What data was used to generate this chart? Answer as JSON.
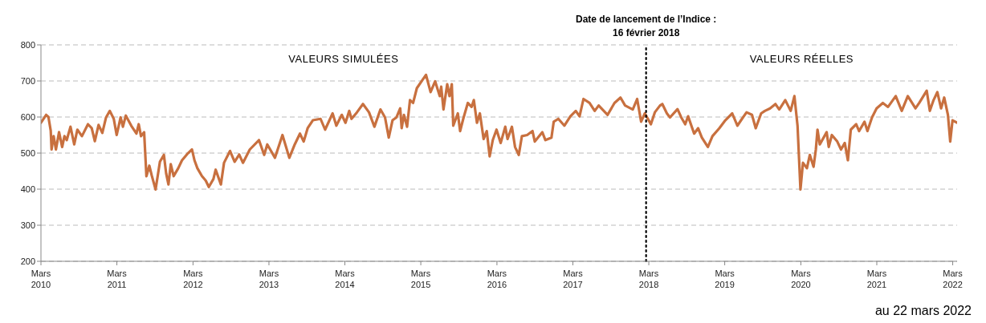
{
  "chart_data": {
    "type": "line",
    "x": [
      "2010-03-01",
      "2010-03-26",
      "2010-04-06",
      "2010-04-17",
      "2010-04-21",
      "2010-05-01",
      "2010-05-12",
      "2010-05-27",
      "2010-06-11",
      "2010-06-22",
      "2010-07-03",
      "2010-07-21",
      "2010-08-08",
      "2010-08-23",
      "2010-09-14",
      "2010-10-13",
      "2010-10-31",
      "2010-11-15",
      "2010-12-03",
      "2010-12-21",
      "2011-01-08",
      "2011-01-26",
      "2011-02-14",
      "2011-02-28",
      "2011-03-19",
      "2011-03-30",
      "2011-04-13",
      "2011-05-09",
      "2011-06-03",
      "2011-06-14",
      "2011-06-25",
      "2011-07-10",
      "2011-07-21",
      "2011-08-04",
      "2011-08-15",
      "2011-09-03",
      "2011-09-24",
      "2011-10-13",
      "2011-10-24",
      "2011-11-04",
      "2011-11-15",
      "2011-11-29",
      "2011-12-21",
      "2012-01-08",
      "2012-02-03",
      "2012-02-25",
      "2012-03-08",
      "2012-03-22",
      "2012-04-13",
      "2012-05-01",
      "2012-05-16",
      "2012-06-07",
      "2012-06-18",
      "2012-07-13",
      "2012-07-28",
      "2012-08-26",
      "2012-09-17",
      "2012-10-09",
      "2012-10-27",
      "2012-11-29",
      "2013-01-12",
      "2013-02-06",
      "2013-02-21",
      "2013-03-30",
      "2013-05-05",
      "2013-06-07",
      "2013-07-03",
      "2013-07-28",
      "2013-08-15",
      "2013-09-03",
      "2013-09-28",
      "2013-11-04",
      "2013-11-26",
      "2014-01-01",
      "2014-01-19",
      "2014-02-14",
      "2014-03-04",
      "2014-03-22",
      "2014-04-02",
      "2014-04-28",
      "2014-05-27",
      "2014-06-25",
      "2014-07-21",
      "2014-08-19",
      "2014-09-10",
      "2014-09-28",
      "2014-10-16",
      "2014-11-04",
      "2014-11-22",
      "2014-11-29",
      "2014-12-10",
      "2014-12-25",
      "2015-01-08",
      "2015-01-23",
      "2015-02-10",
      "2015-03-08",
      "2015-03-26",
      "2015-04-17",
      "2015-05-09",
      "2015-05-31",
      "2015-06-07",
      "2015-06-18",
      "2015-07-06",
      "2015-07-17",
      "2015-07-28",
      "2015-08-04",
      "2015-08-26",
      "2015-09-06",
      "2015-09-21",
      "2015-10-13",
      "2015-10-31",
      "2015-11-11",
      "2015-11-26",
      "2015-12-10",
      "2015-12-28",
      "2016-01-12",
      "2016-01-26",
      "2016-02-10",
      "2016-02-28",
      "2016-03-19",
      "2016-04-10",
      "2016-04-21",
      "2016-05-12",
      "2016-05-27",
      "2016-06-14",
      "2016-06-29",
      "2016-07-24",
      "2016-08-19",
      "2016-08-30",
      "2016-10-05",
      "2016-10-20",
      "2016-11-18",
      "2016-11-29",
      "2016-12-21",
      "2017-01-19",
      "2017-02-17",
      "2017-03-15",
      "2017-04-02",
      "2017-04-21",
      "2017-05-20",
      "2017-06-14",
      "2017-07-03",
      "2017-08-15",
      "2017-09-17",
      "2017-10-16",
      "2017-11-07",
      "2017-12-14",
      "2018-01-04",
      "2018-01-23",
      "2018-02-10",
      "2018-03-11",
      "2018-03-30",
      "2018-04-24",
      "2018-05-05",
      "2018-05-27",
      "2018-06-11",
      "2018-07-17",
      "2018-08-04",
      "2018-08-23",
      "2018-09-06",
      "2018-10-05",
      "2018-10-24",
      "2018-11-11",
      "2018-12-10",
      "2019-01-01",
      "2019-02-03",
      "2019-03-04",
      "2019-04-06",
      "2019-05-01",
      "2019-05-23",
      "2019-06-14",
      "2019-07-10",
      "2019-07-28",
      "2019-08-23",
      "2019-09-10",
      "2019-10-05",
      "2019-10-31",
      "2019-11-18",
      "2019-12-17",
      "2020-01-12",
      "2020-01-30",
      "2020-02-14",
      "2020-02-28",
      "2020-03-11",
      "2020-03-30",
      "2020-04-13",
      "2020-05-01",
      "2020-05-12",
      "2020-05-20",
      "2020-05-31",
      "2020-07-03",
      "2020-07-13",
      "2020-07-28",
      "2020-08-23",
      "2020-09-10",
      "2020-09-28",
      "2020-10-13",
      "2020-10-27",
      "2020-11-22",
      "2020-12-06",
      "2021-01-01",
      "2021-01-15",
      "2021-02-06",
      "2021-02-28",
      "2021-03-30",
      "2021-04-24",
      "2021-05-31",
      "2021-06-29",
      "2021-07-28",
      "2021-09-03",
      "2021-09-21",
      "2021-10-27",
      "2021-11-11",
      "2021-11-29",
      "2021-12-17",
      "2022-01-04",
      "2022-01-19",
      "2022-02-06",
      "2022-02-17",
      "2022-02-28",
      "2022-03-22"
    ],
    "series": [
      {
        "color": "#c8703f",
        "values": [
          584,
          606,
          600,
          562,
          510,
          547,
          510,
          558,
          517,
          547,
          536,
          573,
          524,
          565,
          547,
          580,
          569,
          533,
          578,
          556,
          599,
          617,
          595,
          550,
          599,
          573,
          604,
          576,
          554,
          580,
          547,
          558,
          436,
          465,
          439,
          399,
          476,
          495,
          443,
          413,
          469,
          436,
          458,
          480,
          498,
          510,
          480,
          458,
          436,
          424,
          406,
          428,
          454,
          413,
          473,
          506,
          476,
          496,
          473,
          510,
          536,
          495,
          524,
          487,
          550,
          487,
          524,
          554,
          532,
          569,
          591,
          595,
          565,
          610,
          576,
          606,
          584,
          617,
          595,
          613,
          636,
          613,
          573,
          621,
          599,
          543,
          591,
          599,
          624,
          569,
          606,
          573,
          647,
          639,
          680,
          702,
          717,
          669,
          699,
          658,
          684,
          621,
          691,
          658,
          691,
          576,
          610,
          561,
          595,
          639,
          628,
          647,
          584,
          610,
          539,
          561,
          491,
          536,
          565,
          528,
          573,
          539,
          573,
          517,
          495,
          547,
          550,
          561,
          532,
          558,
          536,
          543,
          587,
          595,
          576,
          602,
          617,
          602,
          650,
          639,
          617,
          632,
          606,
          639,
          654,
          632,
          621,
          650,
          587,
          610,
          580,
          613,
          632,
          636,
          610,
          599,
          622,
          599,
          580,
          602,
          554,
          569,
          543,
          517,
          547,
          569,
          591,
          610,
          576,
          595,
          613,
          606,
          569,
          610,
          617,
          624,
          636,
          621,
          647,
          617,
          658,
          576,
          399,
          473,
          458,
          495,
          462,
          510,
          565,
          524,
          558,
          517,
          550,
          532,
          510,
          528,
          480,
          565,
          580,
          561,
          587,
          561,
          599,
          624,
          639,
          628,
          658,
          617,
          658,
          624,
          639,
          673,
          617,
          647,
          669,
          624,
          654,
          606,
          532,
          591,
          584
        ]
      }
    ],
    "xlim": [
      "2010-03-01",
      "2022-03-22"
    ],
    "xticks": [
      {
        "value": "2010-03-01",
        "label": "Mars\n2010"
      },
      {
        "value": "2011-03-01",
        "label": "Mars\n2011"
      },
      {
        "value": "2012-03-01",
        "label": "Mars\n2012"
      },
      {
        "value": "2013-03-01",
        "label": "Mars\n2013"
      },
      {
        "value": "2014-03-01",
        "label": "Mars\n2014"
      },
      {
        "value": "2015-03-01",
        "label": "Mars\n2015"
      },
      {
        "value": "2016-03-01",
        "label": "Mars\n2016"
      },
      {
        "value": "2017-03-01",
        "label": "Mars\n2017"
      },
      {
        "value": "2018-03-01",
        "label": "Mars\n2018"
      },
      {
        "value": "2019-03-01",
        "label": "Mars\n2019"
      },
      {
        "value": "2020-03-01",
        "label": "Mars\n2020"
      },
      {
        "value": "2021-03-01",
        "label": "Mars\n2021"
      },
      {
        "value": "2022-03-01",
        "label": "Mars\n2022"
      }
    ],
    "ylim": [
      200,
      800
    ],
    "yticks": [
      200,
      300,
      400,
      500,
      600,
      700,
      800
    ],
    "grid": "y",
    "legend": false,
    "ref_lines": [
      {
        "axis": "x",
        "value": "2018-02-16",
        "label": "Date de lancement de l’Indice :\n16 février 2018",
        "color": "#000000",
        "line_style": "dotted"
      }
    ],
    "annotations": [
      "VALEURS SIMULÉES",
      "VALEURS RÉELLES",
      "au 22 mars 2022"
    ]
  }
}
